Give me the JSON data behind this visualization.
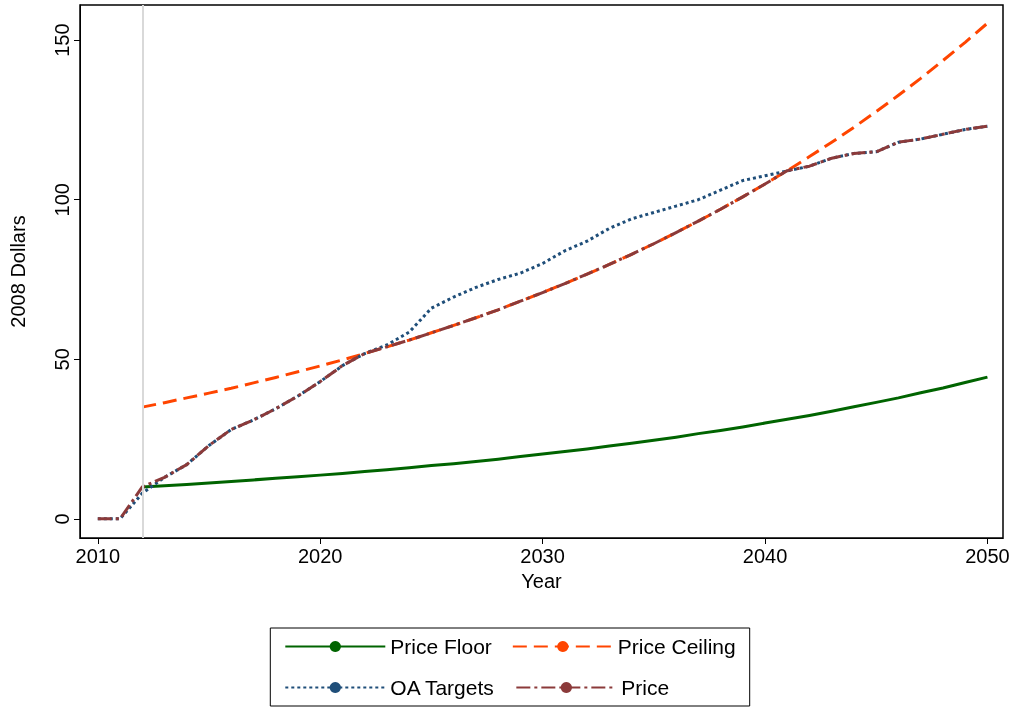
{
  "chart_data": {
    "type": "line",
    "xlabel": "Year",
    "ylabel": "2008 Dollars",
    "x": [
      2010,
      2011,
      2012,
      2013,
      2014,
      2015,
      2016,
      2017,
      2018,
      2019,
      2020,
      2021,
      2022,
      2023,
      2024,
      2025,
      2026,
      2027,
      2028,
      2029,
      2030,
      2031,
      2032,
      2033,
      2034,
      2035,
      2036,
      2037,
      2038,
      2039,
      2040,
      2041,
      2042,
      2043,
      2044,
      2045,
      2046,
      2047,
      2048,
      2049,
      2050
    ],
    "xlim": [
      2009.2,
      2050.7
    ],
    "xticks": [
      2010,
      2020,
      2030,
      2040,
      2050
    ],
    "ylim": [
      -6,
      161
    ],
    "yticks": [
      0,
      50,
      100,
      150
    ],
    "grid": false,
    "legend": "bottom",
    "marker": "none",
    "ref_lines": [
      {
        "axis": "x",
        "value": 2012,
        "label": null,
        "color": "#d9d9d9"
      }
    ],
    "series": [
      {
        "name": "Price Floor",
        "color": "#006400",
        "line_style": "solid",
        "values": [
          null,
          null,
          10.0,
          10.4,
          10.8,
          11.2,
          11.7,
          12.2,
          12.7,
          13.2,
          13.7,
          14.2,
          14.8,
          15.4,
          16.0,
          16.7,
          17.3,
          18.0,
          18.7,
          19.5,
          20.3,
          21.1,
          21.9,
          22.8,
          23.7,
          24.6,
          25.6,
          26.7,
          27.7,
          28.8,
          30.0,
          31.2,
          32.4,
          33.7,
          35.1,
          36.5,
          37.9,
          39.5,
          41.0,
          42.7,
          44.4
        ]
      },
      {
        "name": "Price Ceiling",
        "color": "#ff4500",
        "line_style": "dashed",
        "values": [
          null,
          null,
          35.0,
          36.4,
          37.9,
          39.4,
          40.9,
          42.6,
          44.3,
          46.1,
          47.9,
          49.8,
          51.8,
          53.9,
          56.0,
          58.3,
          60.6,
          63.0,
          65.5,
          68.2,
          70.9,
          73.7,
          76.7,
          79.7,
          82.9,
          86.2,
          89.7,
          93.3,
          97.0,
          100.9,
          104.9,
          109.1,
          113.5,
          118.0,
          122.7,
          127.6,
          132.7,
          138.0,
          143.6,
          149.3,
          155.3
        ]
      },
      {
        "name": "OA Targets",
        "color": "#1f4e79",
        "line_style": "dotted",
        "values": [
          0,
          0,
          8,
          13,
          17,
          23,
          28,
          31,
          34.5,
          38.5,
          43,
          48,
          51.8,
          54.5,
          58.5,
          66,
          69.5,
          72.5,
          75,
          77,
          80,
          84,
          87,
          91,
          94,
          96,
          98,
          100,
          103,
          106,
          107.5,
          109,
          110.5,
          113,
          114.5,
          115,
          118,
          119,
          120.5,
          122,
          123
        ]
      },
      {
        "name": "Price",
        "color": "#8b3a3a",
        "line_style": "dashdot",
        "values": [
          0,
          0,
          10,
          13,
          17,
          23,
          28,
          31,
          34.5,
          38.5,
          43,
          48,
          51.8,
          53.9,
          56.0,
          58.3,
          60.6,
          63.0,
          65.5,
          68.2,
          70.9,
          73.7,
          76.7,
          79.7,
          82.9,
          86.2,
          89.7,
          93.3,
          97.0,
          100.9,
          104.9,
          109.1,
          110.5,
          113,
          114.5,
          115,
          118,
          119,
          120.5,
          122,
          123
        ]
      }
    ]
  }
}
